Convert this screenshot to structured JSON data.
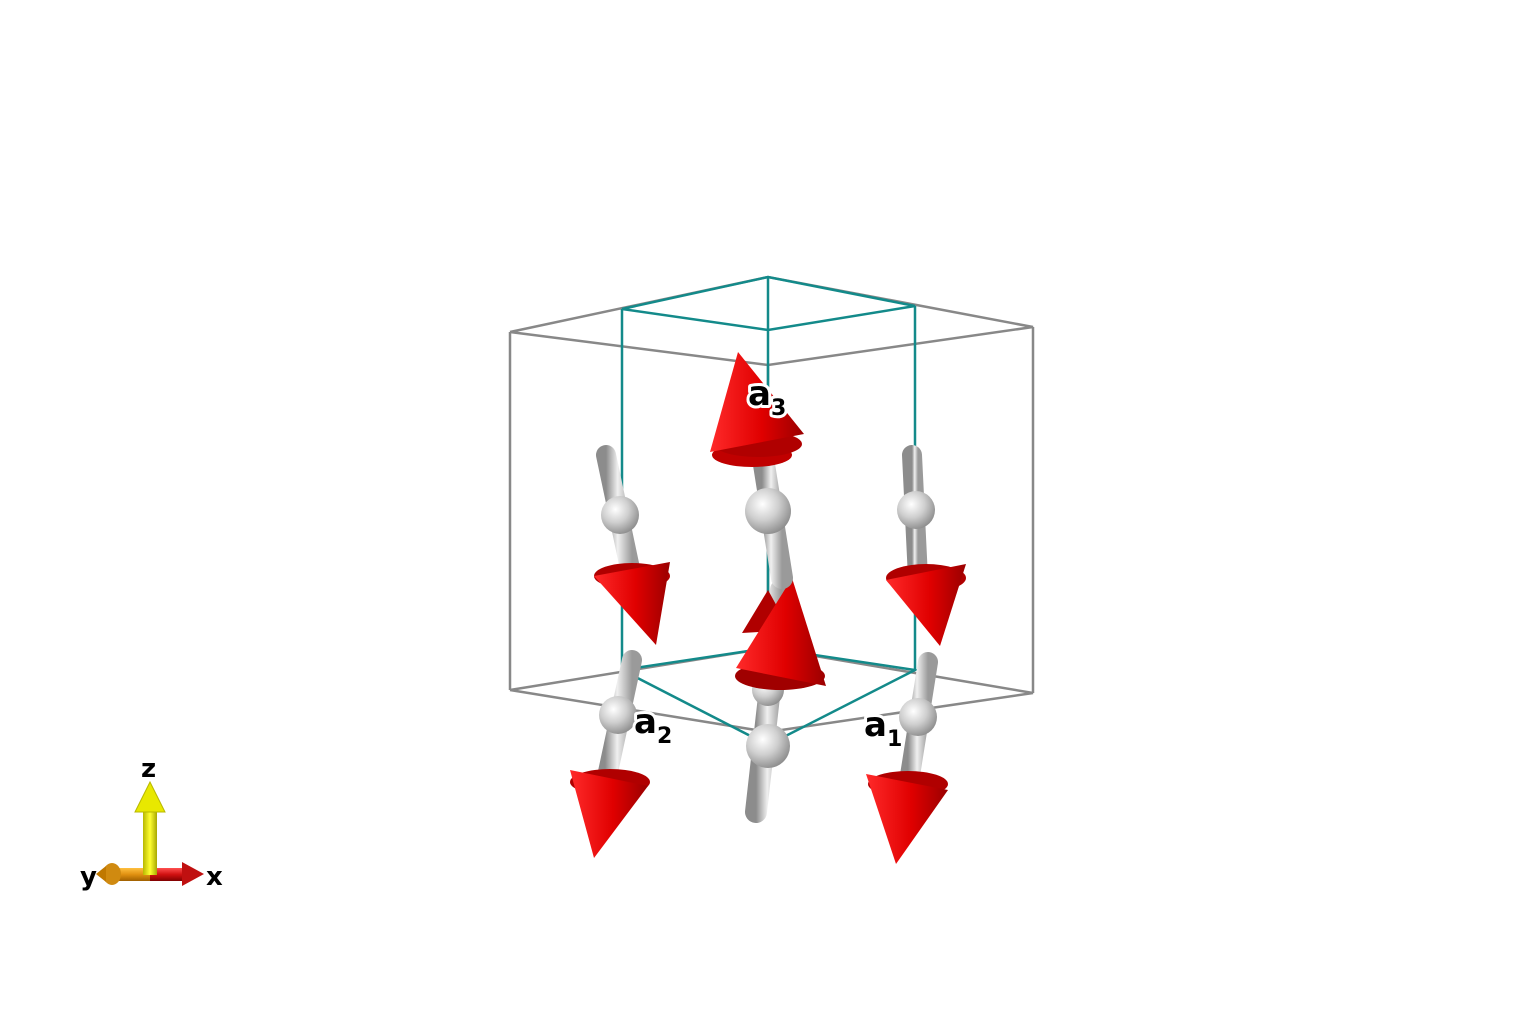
{
  "lattice_labels": {
    "a1": {
      "main": "a",
      "sub": "1"
    },
    "a2": {
      "main": "a",
      "sub": "2"
    },
    "a3": {
      "main": "a",
      "sub": "3"
    }
  },
  "axes_labels": {
    "x": "x",
    "y": "y",
    "z": "z"
  },
  "colors": {
    "background": "#ffffff",
    "conventional_cell": "#888888",
    "primitive_cell": "#138a8a",
    "atom": "#c8c8c8",
    "spin_arrow": "#e60000",
    "axis_x": "#cc1111",
    "axis_y": "#e09a10",
    "axis_z": "#e6e600"
  },
  "atoms": [
    {
      "spin": "down"
    },
    {
      "spin": "up"
    },
    {
      "spin": "down"
    },
    {
      "spin": "down"
    },
    {
      "spin": "up"
    },
    {
      "spin": "down"
    }
  ]
}
